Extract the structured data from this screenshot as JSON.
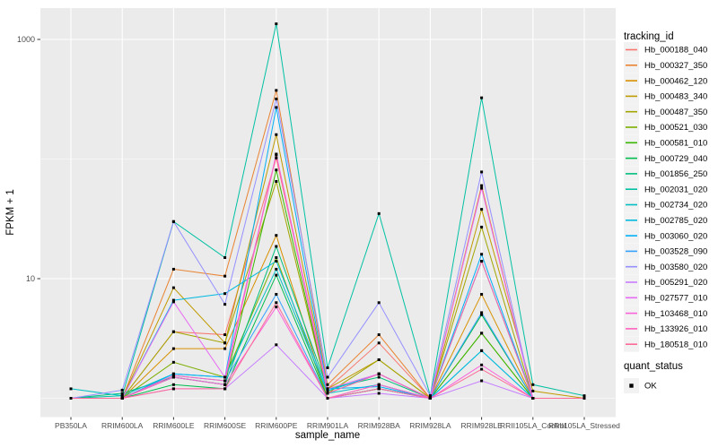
{
  "colors": {
    "figure_bg": "#FFFFFF",
    "panel_bg": "#EBEBEB",
    "gridline": "#FFFFFF",
    "axis_text": "#4D4D4D",
    "tick_mark": "#333333",
    "legend_key_bg": "#F2F2F2",
    "point": "#000000"
  },
  "legend": {
    "title": "tracking_id"
  },
  "quant_legend": {
    "title": "quant_status",
    "items": [
      {
        "label": "OK"
      }
    ]
  },
  "chart_data": {
    "type": "line",
    "title": "",
    "xlabel": "sample_name",
    "ylabel": "FPKM + 1",
    "y_scale": "log10",
    "y_ticks": [
      {
        "value": 10,
        "label": "10"
      },
      {
        "value": 1000,
        "label": "1000"
      }
    ],
    "y_minor_gridlines": [
      1,
      100
    ],
    "ylim": [
      1,
      1400
    ],
    "grid": true,
    "legend_position": "right",
    "point_marker": {
      "shape": "square",
      "color": "#000000",
      "legend_title": "quant_status",
      "legend_label": "OK"
    },
    "x_categories": [
      "PB350LA",
      "RRIM600LA",
      "RRIM600LE",
      "RRIM600SE",
      "RRIM600PE",
      "RRIM901LA",
      "RRIM928BA",
      "RRIM928LA",
      "RRIM928LE",
      "RRII105LA_Control",
      "RRII105LA_Stressed"
    ],
    "series": [
      {
        "name": "Hb_000188_040",
        "color": "#F8766D",
        "values": [
          1,
          1,
          3.6,
          3.4,
          102,
          1.2,
          2.9,
          1,
          14,
          1,
          1
        ]
      },
      {
        "name": "Hb_000327_350",
        "color": "#EA8331",
        "values": [
          1,
          1,
          12,
          10.5,
          375,
          1.3,
          3.4,
          1,
          60,
          1,
          1
        ]
      },
      {
        "name": "Hb_000462_120",
        "color": "#D89000",
        "values": [
          1,
          1,
          2.6,
          2.6,
          23,
          1,
          1.3,
          1,
          7.4,
          1,
          1
        ]
      },
      {
        "name": "Hb_000483_340",
        "color": "#C09B00",
        "values": [
          1,
          1,
          8.4,
          2.9,
          160,
          1.2,
          2.1,
          1,
          38,
          1.15,
          1
        ]
      },
      {
        "name": "Hb_000487_350",
        "color": "#A3A500",
        "values": [
          1,
          1,
          3.6,
          2.9,
          65,
          1.1,
          2.1,
          1,
          27,
          1,
          1
        ]
      },
      {
        "name": "Hb_000521_030",
        "color": "#7CAE00",
        "values": [
          1,
          1,
          2.0,
          1.5,
          15,
          1,
          1.2,
          1,
          3.5,
          1,
          1
        ]
      },
      {
        "name": "Hb_000581_010",
        "color": "#39B600",
        "values": [
          1,
          1,
          1.5,
          1.3,
          81,
          1.1,
          1.6,
          1,
          3.5,
          1,
          1
        ]
      },
      {
        "name": "Hb_000729_040",
        "color": "#00BB4E",
        "values": [
          1,
          1,
          1.3,
          1.2,
          10.7,
          1,
          1.2,
          1,
          5.0,
          1,
          1
        ]
      },
      {
        "name": "Hb_001856_250",
        "color": "#00BF7D",
        "values": [
          1,
          1.1,
          1.5,
          1.3,
          18.6,
          1.2,
          1.5,
          1,
          14,
          1,
          1
        ]
      },
      {
        "name": "Hb_002031_020",
        "color": "#00C1A3",
        "values": [
          1,
          1.05,
          30,
          15,
          1350,
          1.8,
          35,
          1.05,
          325,
          1.3,
          1.05
        ]
      },
      {
        "name": "Hb_002734_020",
        "color": "#00BFC4",
        "values": [
          1.2,
          1.05,
          1.6,
          1.5,
          12,
          1.1,
          1.3,
          1,
          2.5,
          1,
          1
        ]
      },
      {
        "name": "Hb_002785_020",
        "color": "#00BAE0",
        "values": [
          1,
          1,
          6.6,
          7.5,
          14,
          1.15,
          1.6,
          1,
          2.5,
          1,
          1
        ]
      },
      {
        "name": "Hb_003060_020",
        "color": "#00B0F6",
        "values": [
          1,
          1,
          1.6,
          1.5,
          270,
          1.2,
          1.25,
          1,
          16,
          1,
          1
        ]
      },
      {
        "name": "Hb_003528_090",
        "color": "#35A2FF",
        "values": [
          1,
          1,
          1.55,
          1.4,
          7.4,
          1,
          1.2,
          1,
          5.2,
          1,
          1
        ]
      },
      {
        "name": "Hb_003580_020",
        "color": "#9590FF",
        "values": [
          1,
          1.17,
          30,
          6.1,
          318,
          1.5,
          6.3,
          1.05,
          78,
          1,
          1
        ]
      },
      {
        "name": "Hb_005291_020",
        "color": "#C77CFF",
        "values": [
          1,
          1,
          1.2,
          1.2,
          2.8,
          1,
          1.1,
          1,
          1.4,
          1,
          1
        ]
      },
      {
        "name": "Hb_027577_010",
        "color": "#E76BF3",
        "values": [
          1,
          1,
          6.4,
          1.5,
          110,
          1.2,
          1.6,
          1,
          57,
          1,
          1
        ]
      },
      {
        "name": "Hb_103468_010",
        "color": "#FA62DB",
        "values": [
          1,
          1,
          1.5,
          1.3,
          5.8,
          1,
          1.3,
          1,
          1.9,
          1,
          1
        ]
      },
      {
        "name": "Hb_133926_010",
        "color": "#FF62BC",
        "values": [
          1,
          1,
          1.55,
          1.4,
          108,
          1.1,
          1.6,
          1,
          14,
          1,
          1
        ]
      },
      {
        "name": "Hb_180518_010",
        "color": "#FF6A98",
        "values": [
          1,
          1,
          1.2,
          1.2,
          6.3,
          1,
          1.2,
          1,
          1.75,
          1,
          1
        ]
      }
    ]
  }
}
